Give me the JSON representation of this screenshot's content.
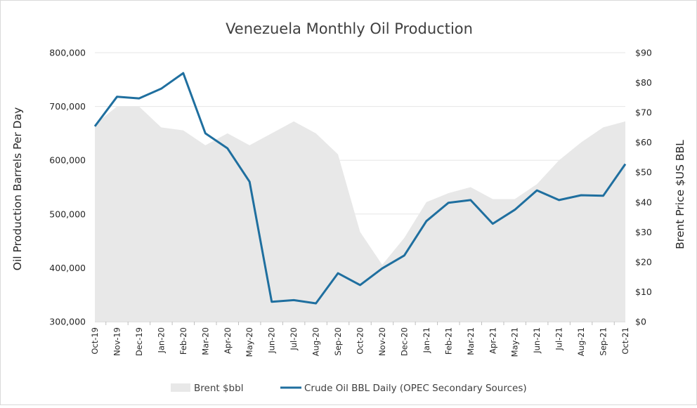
{
  "chart_data": {
    "type": "line",
    "title": "Venezuela Monthly Oil Production",
    "ylabel": "Oil Production Barrels Per Day",
    "y2label": "Brent Price $US BBL",
    "ylim": [
      300000,
      800000
    ],
    "y2lim": [
      0,
      90
    ],
    "yticks": [
      "300,000",
      "400,000",
      "500,000",
      "600,000",
      "700,000",
      "800,000"
    ],
    "y2ticks": [
      "$0",
      "$10",
      "$20",
      "$30",
      "$40",
      "$50",
      "$60",
      "$70",
      "$80",
      "$90"
    ],
    "categories": [
      "Oct-19",
      "Nov-19",
      "Dec-19",
      "Jan-20",
      "Feb-20",
      "Mar-20",
      "Apr-20",
      "May-20",
      "Jun-20",
      "Jul-20",
      "Aug-20",
      "Sep-20",
      "Oct-20",
      "Nov-20",
      "Dec-20",
      "Jan-21",
      "Feb-21",
      "Mar-21",
      "Apr-21",
      "May-21",
      "Jun-21",
      "Jul-21",
      "Aug-21",
      "Sep-21",
      "Oct-21"
    ],
    "grid": true,
    "legend_position": "bottom",
    "series": [
      {
        "name": "Brent $bbl",
        "type": "area",
        "axis": "right",
        "color": "#e8e8e8",
        "values": [
          66,
          72,
          72,
          65,
          64,
          59,
          63,
          59,
          63,
          67,
          63,
          56,
          30,
          19,
          28,
          40,
          43,
          45,
          41,
          41,
          46,
          54,
          60,
          65,
          67
        ]
      },
      {
        "name": "Crude Oil BBL Daily (OPEC Secondary Sources)",
        "type": "line",
        "axis": "left",
        "color": "#1f6f9f",
        "values": [
          663000,
          718000,
          715000,
          733000,
          762000,
          650000,
          622000,
          560000,
          337000,
          340000,
          334000,
          390000,
          368000,
          399000,
          423000,
          487000,
          521000,
          526000,
          482000,
          508000,
          544000,
          526000,
          535000,
          534000,
          593000
        ]
      }
    ]
  }
}
